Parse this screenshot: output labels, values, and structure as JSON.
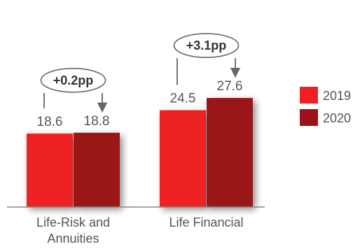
{
  "chart_data": {
    "type": "bar",
    "categories": [
      "Life-Risk and Annuities",
      "Life Financial"
    ],
    "category_lines": [
      [
        "Life-Risk and",
        "Annuities"
      ],
      [
        "Life Financial"
      ]
    ],
    "series": [
      {
        "name": "2019",
        "values": [
          18.6,
          24.5
        ],
        "color": "#ee2024"
      },
      {
        "name": "2020",
        "values": [
          18.8,
          27.6
        ],
        "color": "#9b1219"
      }
    ],
    "callouts": [
      "+0.2pp",
      "+3.1pp"
    ],
    "legend_position": "right",
    "grid": false
  }
}
